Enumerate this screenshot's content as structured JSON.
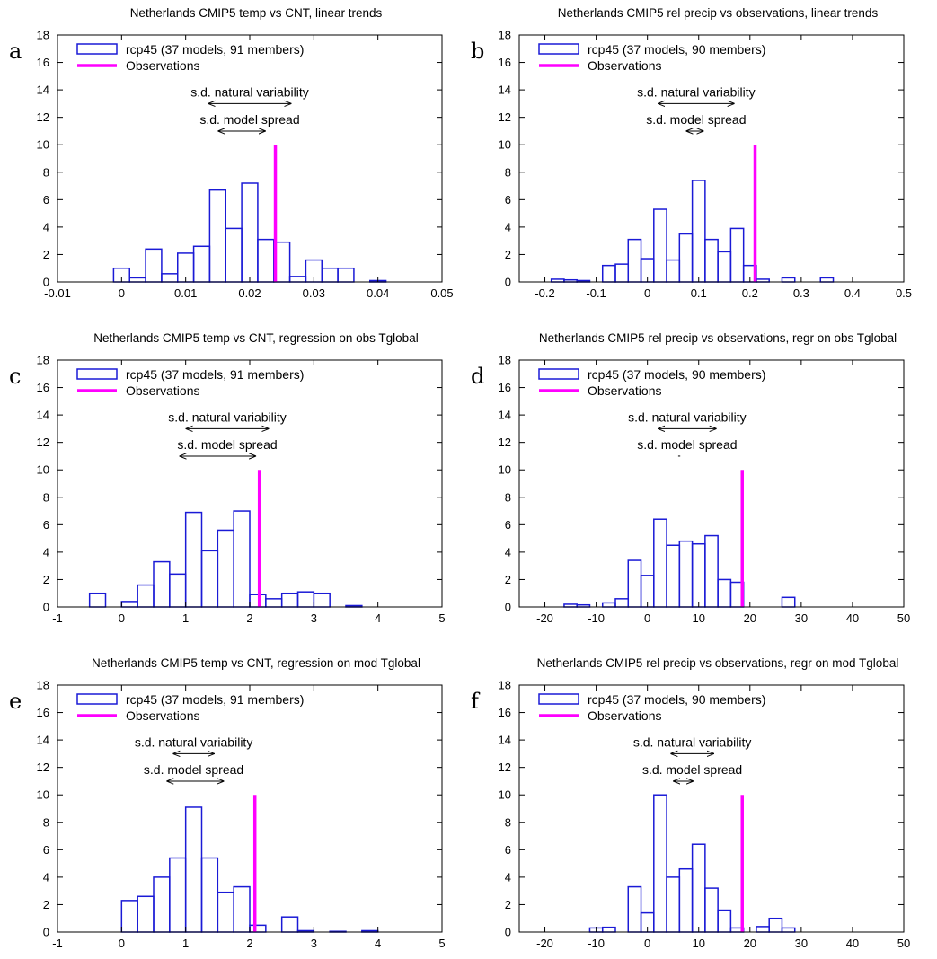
{
  "colors": {
    "histogram": "#1a1ad6",
    "observations": "#ff00ff",
    "axis": "#000000"
  },
  "chart_data": [
    {
      "type": "bar",
      "panel": "a",
      "title": "Netherlands CMIP5 temp vs CNT, linear trends",
      "xlim": [
        -0.01,
        0.05
      ],
      "ylim": [
        0,
        18
      ],
      "xticks": [
        "-0.01",
        "0",
        "0.01",
        "0.02",
        "0.03",
        "0.04",
        "0.05"
      ],
      "yticks": [
        "0",
        "2",
        "4",
        "6",
        "8",
        "10",
        "12",
        "14",
        "16",
        "18"
      ],
      "legend": {
        "series": "rcp45 (37 models, 91 members)",
        "obs": "Observations",
        "placement": "top-left"
      },
      "bin_width": 0.0025,
      "bins": [
        {
          "x": 0.0,
          "y": 1.0
        },
        {
          "x": 0.0025,
          "y": 0.3
        },
        {
          "x": 0.005,
          "y": 2.4
        },
        {
          "x": 0.0075,
          "y": 0.6
        },
        {
          "x": 0.01,
          "y": 2.1
        },
        {
          "x": 0.0125,
          "y": 2.6
        },
        {
          "x": 0.015,
          "y": 6.7
        },
        {
          "x": 0.0175,
          "y": 3.9
        },
        {
          "x": 0.02,
          "y": 7.2
        },
        {
          "x": 0.0225,
          "y": 3.1
        },
        {
          "x": 0.025,
          "y": 2.9
        },
        {
          "x": 0.0275,
          "y": 0.4
        },
        {
          "x": 0.03,
          "y": 1.6
        },
        {
          "x": 0.0325,
          "y": 1.0
        },
        {
          "x": 0.035,
          "y": 1.0
        },
        {
          "x": 0.04,
          "y": 0.1
        }
      ],
      "observation": 0.024,
      "obs_height": 10,
      "natural_variability": {
        "label": "s.d. natural variability",
        "from": 0.0135,
        "to": 0.0265,
        "y": 13
      },
      "model_spread": {
        "label": "s.d. model spread",
        "from": 0.015,
        "to": 0.0225,
        "y": 11
      }
    },
    {
      "type": "bar",
      "panel": "b",
      "title": "Netherlands CMIP5 rel precip vs observations, linear trends",
      "xlim": [
        -0.25,
        0.5
      ],
      "ylim": [
        0,
        18
      ],
      "xticks": [
        "-0.2",
        "-0.1",
        "0",
        "0.1",
        "0.2",
        "0.3",
        "0.4",
        "0.5"
      ],
      "yticks": [
        "0",
        "2",
        "4",
        "6",
        "8",
        "10",
        "12",
        "14",
        "16",
        "18"
      ],
      "legend": {
        "series": "rcp45 (37 models, 90 members)",
        "obs": "Observations",
        "placement": "top-left"
      },
      "bin_width": 0.025,
      "bins": [
        {
          "x": -0.175,
          "y": 0.2
        },
        {
          "x": -0.15,
          "y": 0.15
        },
        {
          "x": -0.125,
          "y": 0.1
        },
        {
          "x": -0.075,
          "y": 1.2
        },
        {
          "x": -0.05,
          "y": 1.3
        },
        {
          "x": -0.025,
          "y": 3.1
        },
        {
          "x": 0.0,
          "y": 1.7
        },
        {
          "x": 0.025,
          "y": 5.3
        },
        {
          "x": 0.05,
          "y": 1.6
        },
        {
          "x": 0.075,
          "y": 3.5
        },
        {
          "x": 0.1,
          "y": 7.4
        },
        {
          "x": 0.125,
          "y": 3.1
        },
        {
          "x": 0.15,
          "y": 2.2
        },
        {
          "x": 0.175,
          "y": 3.9
        },
        {
          "x": 0.2,
          "y": 1.2
        },
        {
          "x": 0.225,
          "y": 0.2
        },
        {
          "x": 0.275,
          "y": 0.3
        },
        {
          "x": 0.35,
          "y": 0.3
        }
      ],
      "observation": 0.21,
      "obs_height": 10,
      "natural_variability": {
        "label": "s.d. natural variability",
        "from": 0.02,
        "to": 0.17,
        "y": 13
      },
      "model_spread": {
        "label": "s.d. model spread",
        "from": 0.075,
        "to": 0.11,
        "y": 11
      }
    },
    {
      "type": "bar",
      "panel": "c",
      "title": "Netherlands CMIP5 temp vs CNT, regression on obs Tglobal",
      "xlim": [
        -1,
        5
      ],
      "ylim": [
        0,
        18
      ],
      "xticks": [
        "-1",
        "0",
        "1",
        "2",
        "3",
        "4",
        "5"
      ],
      "yticks": [
        "0",
        "2",
        "4",
        "6",
        "8",
        "10",
        "12",
        "14",
        "16",
        "18"
      ],
      "legend": {
        "series": "rcp45 (37 models, 91 members)",
        "obs": "Observations",
        "placement": "top-left"
      },
      "bin_width": 0.25,
      "bins": [
        {
          "x": -0.375,
          "y": 1.0
        },
        {
          "x": 0.125,
          "y": 0.4
        },
        {
          "x": 0.375,
          "y": 1.6
        },
        {
          "x": 0.625,
          "y": 3.3
        },
        {
          "x": 0.875,
          "y": 2.4
        },
        {
          "x": 1.125,
          "y": 6.9
        },
        {
          "x": 1.375,
          "y": 4.1
        },
        {
          "x": 1.625,
          "y": 5.6
        },
        {
          "x": 1.875,
          "y": 7.0
        },
        {
          "x": 2.125,
          "y": 0.9
        },
        {
          "x": 2.375,
          "y": 0.6
        },
        {
          "x": 2.625,
          "y": 1.0
        },
        {
          "x": 2.875,
          "y": 1.1
        },
        {
          "x": 3.125,
          "y": 1.0
        },
        {
          "x": 3.625,
          "y": 0.1
        }
      ],
      "observation": 2.15,
      "obs_height": 10,
      "natural_variability": {
        "label": "s.d. natural variability",
        "from": 1.0,
        "to": 2.3,
        "y": 13
      },
      "model_spread": {
        "label": "s.d. model spread",
        "from": 0.9,
        "to": 2.1,
        "y": 11
      }
    },
    {
      "type": "bar",
      "panel": "d",
      "title": "Netherlands CMIP5 rel precip vs observations, regr on obs Tglobal",
      "xlim": [
        -25,
        50
      ],
      "ylim": [
        0,
        18
      ],
      "xticks": [
        "-20",
        "-10",
        "0",
        "10",
        "20",
        "30",
        "40",
        "50"
      ],
      "yticks": [
        "0",
        "2",
        "4",
        "6",
        "8",
        "10",
        "12",
        "14",
        "16",
        "18"
      ],
      "legend": {
        "series": "rcp45 (37 models, 90 members)",
        "obs": "Observations",
        "placement": "top-left"
      },
      "bin_width": 2.5,
      "bins": [
        {
          "x": -15,
          "y": 0.2
        },
        {
          "x": -12.5,
          "y": 0.15
        },
        {
          "x": -7.5,
          "y": 0.3
        },
        {
          "x": -5,
          "y": 0.6
        },
        {
          "x": -2.5,
          "y": 3.4
        },
        {
          "x": 0,
          "y": 2.3
        },
        {
          "x": 2.5,
          "y": 6.4
        },
        {
          "x": 5,
          "y": 4.5
        },
        {
          "x": 7.5,
          "y": 4.8
        },
        {
          "x": 10,
          "y": 4.6
        },
        {
          "x": 12.5,
          "y": 5.2
        },
        {
          "x": 15,
          "y": 2.0
        },
        {
          "x": 17.5,
          "y": 1.8
        },
        {
          "x": 27.5,
          "y": 0.7
        }
      ],
      "observation": 18.5,
      "obs_height": 10,
      "natural_variability": {
        "label": "s.d. natural variability",
        "from": 2.0,
        "to": 13.5,
        "y": 13
      },
      "model_spread": {
        "label": "s.d. model spread",
        "from": 6.0,
        "to": 6.4,
        "y": 11
      }
    },
    {
      "type": "bar",
      "panel": "e",
      "title": "Netherlands CMIP5 temp vs CNT, regression on mod Tglobal",
      "xlim": [
        -1,
        5
      ],
      "ylim": [
        0,
        18
      ],
      "xticks": [
        "-1",
        "0",
        "1",
        "2",
        "3",
        "4",
        "5"
      ],
      "yticks": [
        "0",
        "2",
        "4",
        "6",
        "8",
        "10",
        "12",
        "14",
        "16",
        "18"
      ],
      "legend": {
        "series": "rcp45 (37 models, 91 members)",
        "obs": "Observations",
        "placement": "top-left"
      },
      "bin_width": 0.25,
      "bins": [
        {
          "x": 0.125,
          "y": 2.3
        },
        {
          "x": 0.375,
          "y": 2.6
        },
        {
          "x": 0.625,
          "y": 4.0
        },
        {
          "x": 0.875,
          "y": 5.4
        },
        {
          "x": 1.125,
          "y": 9.1
        },
        {
          "x": 1.375,
          "y": 5.4
        },
        {
          "x": 1.625,
          "y": 2.9
        },
        {
          "x": 1.875,
          "y": 3.3
        },
        {
          "x": 2.125,
          "y": 0.5
        },
        {
          "x": 2.625,
          "y": 1.1
        },
        {
          "x": 2.875,
          "y": 0.1
        },
        {
          "x": 3.375,
          "y": 0.05
        },
        {
          "x": 3.875,
          "y": 0.1
        }
      ],
      "observation": 2.08,
      "obs_height": 10,
      "natural_variability": {
        "label": "s.d. natural variability",
        "from": 0.8,
        "to": 1.45,
        "y": 13
      },
      "model_spread": {
        "label": "s.d. model spread",
        "from": 0.7,
        "to": 1.6,
        "y": 11
      }
    },
    {
      "type": "bar",
      "panel": "f",
      "title": "Netherlands CMIP5 rel precip vs observations, regr on mod Tglobal",
      "xlim": [
        -25,
        50
      ],
      "ylim": [
        0,
        18
      ],
      "xticks": [
        "-20",
        "-10",
        "0",
        "10",
        "20",
        "30",
        "40",
        "50"
      ],
      "yticks": [
        "0",
        "2",
        "4",
        "6",
        "8",
        "10",
        "12",
        "14",
        "16",
        "18"
      ],
      "legend": {
        "series": "rcp45 (37 models, 90 members)",
        "obs": "Observations",
        "placement": "top-left"
      },
      "bin_width": 2.5,
      "bins": [
        {
          "x": -10,
          "y": 0.3
        },
        {
          "x": -7.5,
          "y": 0.35
        },
        {
          "x": -2.5,
          "y": 3.3
        },
        {
          "x": 0,
          "y": 1.4
        },
        {
          "x": 2.5,
          "y": 10.0
        },
        {
          "x": 5,
          "y": 4.0
        },
        {
          "x": 7.5,
          "y": 4.6
        },
        {
          "x": 10,
          "y": 6.4
        },
        {
          "x": 12.5,
          "y": 3.2
        },
        {
          "x": 15,
          "y": 1.6
        },
        {
          "x": 17.5,
          "y": 0.3
        },
        {
          "x": 22.5,
          "y": 0.4
        },
        {
          "x": 25,
          "y": 1.0
        },
        {
          "x": 27.5,
          "y": 0.3
        }
      ],
      "observation": 18.5,
      "obs_height": 10,
      "natural_variability": {
        "label": "s.d. natural variability",
        "from": 4.5,
        "to": 13.0,
        "y": 13
      },
      "model_spread": {
        "label": "s.d. model spread",
        "from": 5.0,
        "to": 9.0,
        "y": 11
      }
    }
  ]
}
